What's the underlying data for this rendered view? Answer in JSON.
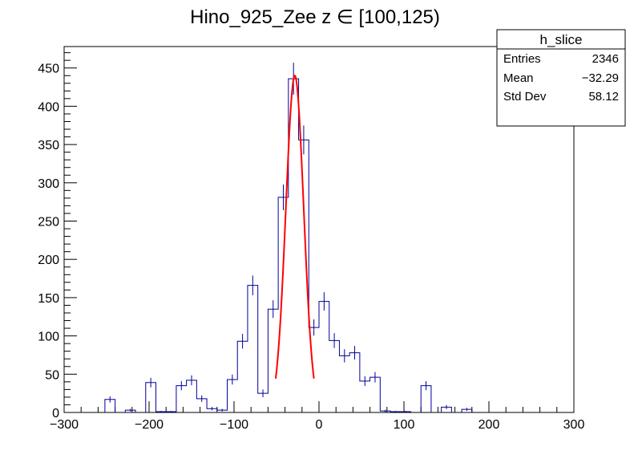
{
  "chart_data": {
    "type": "histogram",
    "title": "Hino_925_Zee z  ∈ [100,125)",
    "xlabel": "",
    "ylabel": "",
    "xlim": [
      -300,
      300
    ],
    "ylim": [
      0,
      478
    ],
    "grid": false,
    "bin_width": 12,
    "x_ticks": [
      -300,
      -200,
      -100,
      0,
      100,
      200,
      300
    ],
    "y_ticks": [
      0,
      50,
      100,
      150,
      200,
      250,
      300,
      350,
      400,
      450
    ],
    "x_tick_labels": [
      "−300",
      "−200",
      "−100",
      "0",
      "100",
      "200",
      "300"
    ],
    "y_tick_labels": [
      "0",
      "50",
      "100",
      "150",
      "200",
      "250",
      "300",
      "350",
      "400",
      "450"
    ],
    "bins": [
      {
        "x": -246,
        "y": 17
      },
      {
        "x": -222,
        "y": 3
      },
      {
        "x": -198,
        "y": 39
      },
      {
        "x": -186,
        "y": 1
      },
      {
        "x": -174,
        "y": 1
      },
      {
        "x": -162,
        "y": 35
      },
      {
        "x": -150,
        "y": 42
      },
      {
        "x": -138,
        "y": 18
      },
      {
        "x": -126,
        "y": 5
      },
      {
        "x": -114,
        "y": 3
      },
      {
        "x": -102,
        "y": 43
      },
      {
        "x": -90,
        "y": 93
      },
      {
        "x": -78,
        "y": 166
      },
      {
        "x": -66,
        "y": 25
      },
      {
        "x": -54,
        "y": 135
      },
      {
        "x": -42,
        "y": 281
      },
      {
        "x": -30,
        "y": 436
      },
      {
        "x": -18,
        "y": 356
      },
      {
        "x": -6,
        "y": 111
      },
      {
        "x": 6,
        "y": 145
      },
      {
        "x": 18,
        "y": 94
      },
      {
        "x": 30,
        "y": 74
      },
      {
        "x": 42,
        "y": 78
      },
      {
        "x": 54,
        "y": 41
      },
      {
        "x": 66,
        "y": 46
      },
      {
        "x": 78,
        "y": 2
      },
      {
        "x": 90,
        "y": 1
      },
      {
        "x": 102,
        "y": 1
      },
      {
        "x": 126,
        "y": 35
      },
      {
        "x": 150,
        "y": 7
      },
      {
        "x": 174,
        "y": 4
      }
    ],
    "fit": {
      "type": "gaussian",
      "amplitude": 440,
      "mean": -28.5,
      "sigma": 10.5,
      "range": [
        -51,
        -6
      ],
      "color": "#ff0000"
    },
    "histogram_color": "#000099",
    "stats_box": {
      "title": "h_slice",
      "rows": [
        {
          "label": "Entries",
          "value": "2346"
        },
        {
          "label": "Mean",
          "value": "−32.29"
        },
        {
          "label": "Std Dev",
          "value": "58.12"
        }
      ]
    }
  }
}
